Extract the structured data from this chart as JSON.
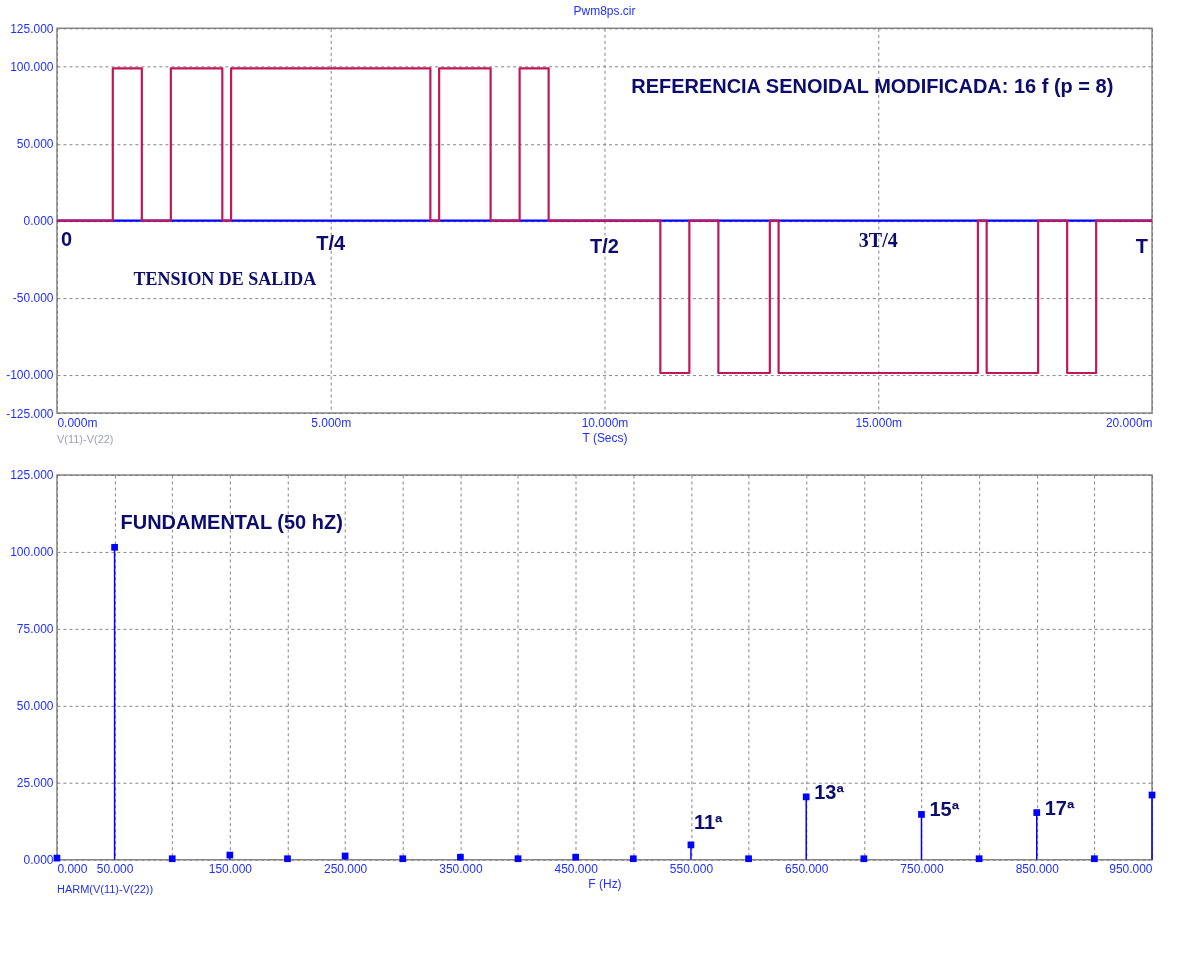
{
  "chart_data": [
    {
      "type": "line",
      "title": "Pwm8ps.cir",
      "xlabel": "T (Secs)",
      "grid": true,
      "marker": "none",
      "line_style": "solid",
      "xlim": [
        0,
        20
      ],
      "xticks": [
        {
          "value": 0,
          "label": "0.000m"
        },
        {
          "value": 5,
          "label": "5.000m"
        },
        {
          "value": 10,
          "label": "10.000m"
        },
        {
          "value": 15,
          "label": "15.000m"
        },
        {
          "value": 20,
          "label": "20.000m"
        }
      ],
      "ylim": [
        -125,
        125
      ],
      "yticks": [
        {
          "value": 125,
          "label": "125.000"
        },
        {
          "value": 100,
          "label": "100.000"
        },
        {
          "value": 50,
          "label": "50.000"
        },
        {
          "value": 0,
          "label": "0.000"
        },
        {
          "value": -50,
          "label": "-50.000"
        },
        {
          "value": -100,
          "label": "-100.000"
        },
        {
          "value": -125,
          "label": "-125.000"
        }
      ],
      "series": [
        {
          "color": "#0000ff",
          "x": [
            0,
            20
          ],
          "values": [
            0,
            0
          ]
        },
        {
          "color": "#c0185a",
          "x": [
            0,
            1.02,
            1.02,
            1.55,
            1.55,
            2.08,
            2.08,
            3.02,
            3.02,
            3.18,
            3.18,
            6.82,
            6.82,
            6.98,
            6.98,
            7.92,
            7.92,
            8.45,
            8.45,
            8.98,
            8.98,
            11.02,
            11.02,
            11.55,
            11.55,
            12.08,
            12.08,
            13.02,
            13.02,
            13.18,
            13.18,
            16.82,
            16.82,
            16.98,
            16.98,
            17.92,
            17.92,
            18.45,
            18.45,
            18.98,
            18.98,
            20
          ],
          "values": [
            0,
            0,
            99,
            99,
            0,
            0,
            99,
            99,
            0,
            0,
            99,
            99,
            0,
            0,
            99,
            99,
            0,
            0,
            99,
            99,
            0,
            0,
            -99,
            -99,
            0,
            0,
            -99,
            -99,
            0,
            0,
            -99,
            -99,
            0,
            0,
            -99,
            -99,
            0,
            0,
            -99,
            -99,
            0,
            0
          ]
        }
      ],
      "annotations": [
        "0",
        "T/4",
        "T/2",
        "3T/4",
        "T",
        "REFERENCIA SENOIDAL MODIFICADA:  16 f  (p = 8)",
        "TENSION DE SALIDA",
        "V(11)-V(22)"
      ]
    },
    {
      "type": "lollipop",
      "xlabel": "F (Hz)",
      "grid": true,
      "marker": "square",
      "xlim": [
        0,
        950
      ],
      "xticks": [
        {
          "value": 0,
          "label": "0.000"
        },
        {
          "value": 50,
          "label": "50.000"
        },
        {
          "value": 100,
          "label": null
        },
        {
          "value": 150,
          "label": "150.000"
        },
        {
          "value": 200,
          "label": null
        },
        {
          "value": 250,
          "label": "250.000"
        },
        {
          "value": 300,
          "label": null
        },
        {
          "value": 350,
          "label": "350.000"
        },
        {
          "value": 400,
          "label": null
        },
        {
          "value": 450,
          "label": "450.000"
        },
        {
          "value": 500,
          "label": null
        },
        {
          "value": 550,
          "label": "550.000"
        },
        {
          "value": 600,
          "label": null
        },
        {
          "value": 650,
          "label": "650.000"
        },
        {
          "value": 700,
          "label": null
        },
        {
          "value": 750,
          "label": "750.000"
        },
        {
          "value": 800,
          "label": null
        },
        {
          "value": 850,
          "label": "850.000"
        },
        {
          "value": 900,
          "label": null
        },
        {
          "value": 950,
          "label": "950.000"
        }
      ],
      "ylim": [
        0,
        125
      ],
      "yticks": [
        {
          "value": 0,
          "label": "0.000"
        },
        {
          "value": 25,
          "label": "25.000"
        },
        {
          "value": 50,
          "label": "50.000"
        },
        {
          "value": 75,
          "label": "75.000"
        },
        {
          "value": 100,
          "label": "100.000"
        },
        {
          "value": 125,
          "label": "125.000"
        }
      ],
      "series": [
        {
          "color": "#0000ff",
          "x": [
            0,
            50,
            100,
            150,
            200,
            250,
            300,
            350,
            400,
            450,
            500,
            550,
            600,
            650,
            700,
            750,
            800,
            850,
            900,
            950
          ],
          "values": [
            0.5,
            101.5,
            0.3,
            1.5,
            0.3,
            1.2,
            0.3,
            0.8,
            0.3,
            0.8,
            0.3,
            4.8,
            0.3,
            20.4,
            0.3,
            14.7,
            0.3,
            15.3,
            0.3,
            21
          ]
        }
      ],
      "annotations": [
        {
          "text": "FUNDAMENTAL (50 hZ)",
          "x": 50,
          "y": 101.5
        },
        {
          "text": "11ª",
          "x": 550,
          "y": 4.8
        },
        {
          "text": "13ª",
          "x": 650,
          "y": 20.4
        },
        {
          "text": "15ª",
          "x": 750,
          "y": 14.7
        },
        {
          "text": "17ª",
          "x": 850,
          "y": 15.3
        },
        "HARM(V(11)-V(22))"
      ]
    }
  ]
}
